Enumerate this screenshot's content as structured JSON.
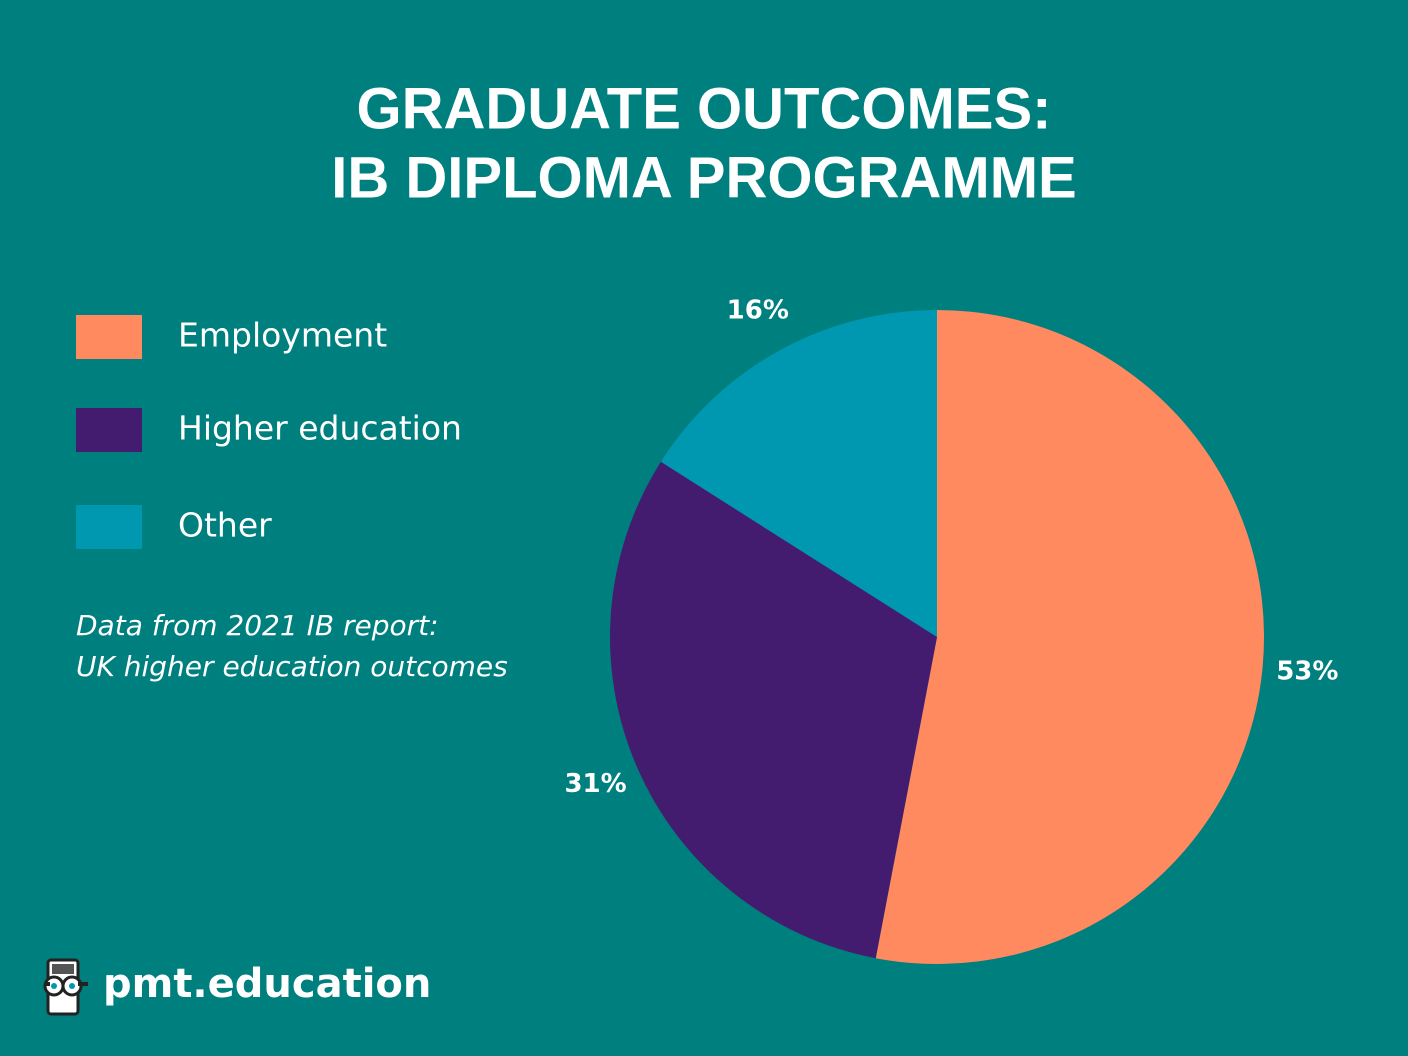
{
  "chart_data": {
    "type": "pie",
    "title_lines": [
      "GRADUATE OUTCOMES:",
      "IB DIPLOMA PROGRAMME"
    ],
    "categories": [
      "Employment",
      "Higher education",
      "Other"
    ],
    "values": [
      53,
      31,
      16
    ],
    "value_labels": [
      "53%",
      "31%",
      "16%"
    ],
    "colors": [
      "#ff8a5f",
      "#431c70",
      "#0098b0"
    ],
    "note_lines": [
      "Data from 2021 IB report:",
      "UK higher education outcomes"
    ],
    "brand": "pmt.education"
  }
}
